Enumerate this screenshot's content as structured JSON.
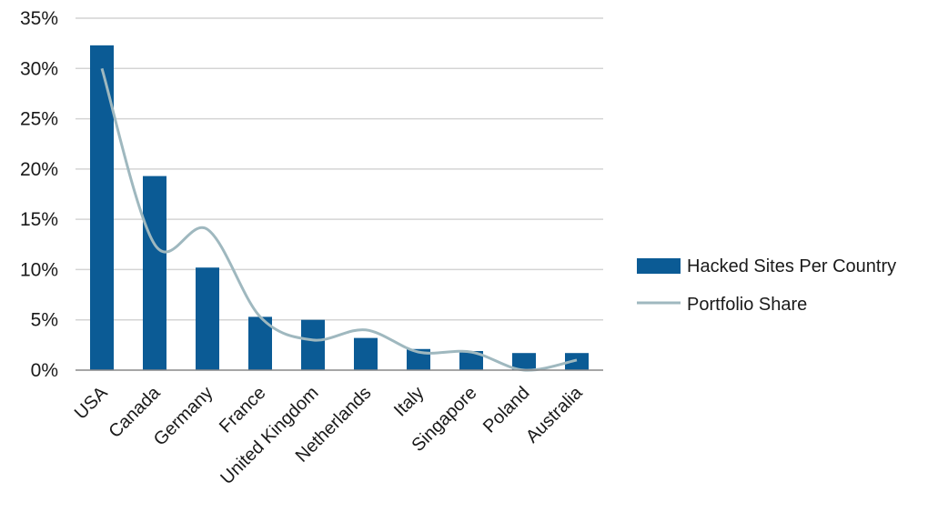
{
  "chart_data": {
    "type": "bar",
    "title": "",
    "xlabel": "",
    "ylabel": "",
    "categories": [
      "USA",
      "Canada",
      "Germany",
      "France",
      "United Kingdom",
      "Netherlands",
      "Italy",
      "Singapore",
      "Poland",
      "Australia"
    ],
    "ylim": [
      0,
      35
    ],
    "y_ticks": [
      "0%",
      "5%",
      "10%",
      "15%",
      "20%",
      "25%",
      "30%",
      "35%"
    ],
    "grid": "horizontal",
    "legend_position": "right",
    "series": [
      {
        "name": "Hacked Sites Per Country",
        "kind": "bar",
        "color": "#0b5b95",
        "values": [
          32.3,
          19.3,
          10.2,
          5.3,
          5.0,
          3.2,
          2.1,
          1.9,
          1.7,
          1.7
        ]
      },
      {
        "name": "Portfolio Share",
        "kind": "line",
        "smooth": true,
        "color": "#9fb8bf",
        "values": [
          30.0,
          12.5,
          14.0,
          5.3,
          3.0,
          4.0,
          1.8,
          1.8,
          0.0,
          1.0
        ]
      }
    ]
  }
}
